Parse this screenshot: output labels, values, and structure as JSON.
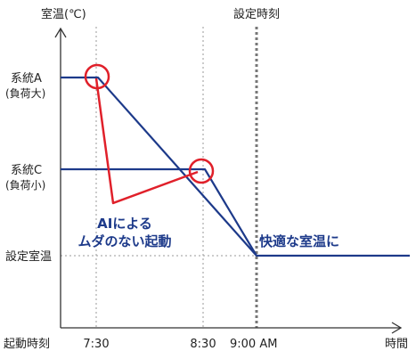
{
  "axes": {
    "y_title": "室温(℃)",
    "x_title": "時間",
    "x_prefix": "起動時刻"
  },
  "y_levels": {
    "a_line1": "系統A",
    "a_line2": "(負荷大)",
    "c_line1": "系統C",
    "c_line2": "(負荷小)",
    "set_temp": "設定室温"
  },
  "time_ticks": {
    "t730": "7:30",
    "t830": "8:30",
    "t900": "9:00 AM"
  },
  "annotations": {
    "set_time": "設定時刻",
    "ai_line1": "AIによる",
    "ai_line2": "ムダのない起動",
    "comfort": "快適な室温に"
  },
  "colors": {
    "navy": "#1d3a8a",
    "red": "#e0202a",
    "axis": "#333333",
    "grid": "#999999"
  }
}
